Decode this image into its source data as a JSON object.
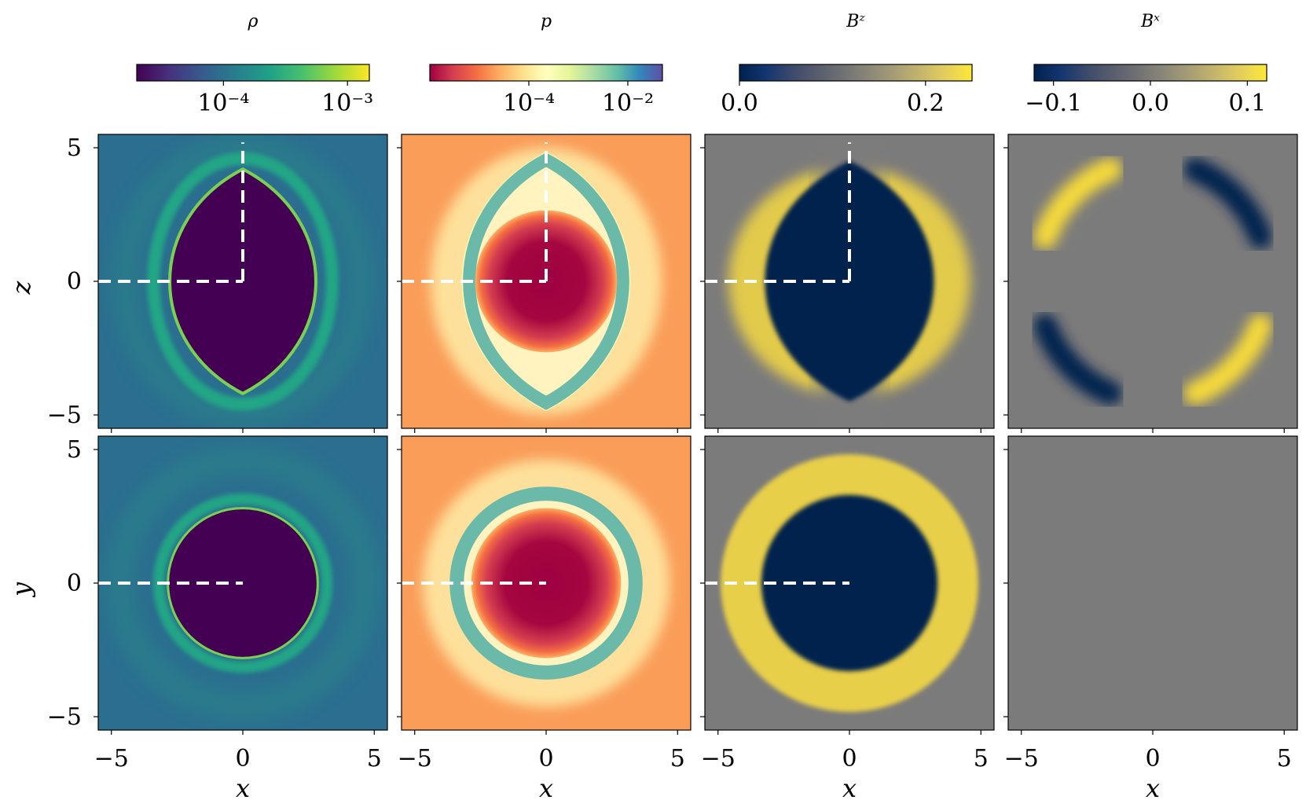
{
  "chart_data": {
    "type": "heatmap",
    "x_axis": {
      "label": "x",
      "ticks": [
        -5,
        0,
        5
      ],
      "tick_labels": [
        "−5",
        "0",
        "5"
      ],
      "range": [
        -5.5,
        5.5
      ]
    },
    "rows": [
      {
        "id": "xz",
        "ylabel": "z",
        "yticks": [
          -5,
          0,
          5
        ],
        "ytick_labels": [
          "−5",
          "0",
          "5"
        ],
        "yrange": [
          -5.5,
          5.5
        ]
      },
      {
        "id": "xy",
        "ylabel": "y",
        "yticks": [
          -5,
          0,
          5
        ],
        "ytick_labels": [
          "−5",
          "0",
          "5"
        ],
        "yrange": [
          -5.5,
          5.5
        ]
      }
    ],
    "panels": [
      {
        "var": "rho",
        "title": "ρ",
        "colormap": "viridis",
        "scale": "log",
        "colorbar": {
          "tick_labels": [
            "10⁻⁴",
            "10⁻³"
          ],
          "tick_values": [
            0.0001,
            0.001
          ]
        },
        "colors": {
          "background": "#2b6e8f",
          "interior": "#440154",
          "shell": "#21a685",
          "bright": "#7ad151"
        }
      },
      {
        "var": "p",
        "title": "p",
        "colormap": "Spectral",
        "scale": "log",
        "colorbar": {
          "tick_labels": [
            "10⁻⁴",
            "10⁻²"
          ],
          "tick_values": [
            0.0001,
            0.01
          ]
        },
        "colors": {
          "background": "#f99d59",
          "interior": "#9e0142",
          "shell": "#6bb9a8",
          "halo": "#fee8a3"
        }
      },
      {
        "var": "Bz",
        "title": "Bᶻ",
        "colormap": "cividis",
        "scale": "linear",
        "colorbar": {
          "tick_labels": [
            "0.0",
            "0.2"
          ],
          "tick_values": [
            0.0,
            0.2
          ],
          "range": [
            0.0,
            0.25
          ]
        },
        "colors": {
          "background": "#7b7b7b",
          "interior": "#00224e",
          "shell": "#e8cf4a"
        }
      },
      {
        "var": "Bx",
        "title": "Bˣ",
        "colormap": "cividis",
        "scale": "linear",
        "colorbar": {
          "tick_labels": [
            "−0.1",
            "0.0",
            "0.1"
          ],
          "tick_values": [
            -0.1,
            0.0,
            0.1
          ],
          "range": [
            -0.12,
            0.12
          ]
        },
        "colors": {
          "background": "#7b7b7b",
          "negative": "#00224e",
          "positive": "#f5d93a"
        }
      }
    ],
    "overlay": {
      "style": "dashed",
      "color": "#ffffff",
      "note": "white dashed line along -x axis; vertical dashed line along +z in top row (first three columns)"
    }
  }
}
